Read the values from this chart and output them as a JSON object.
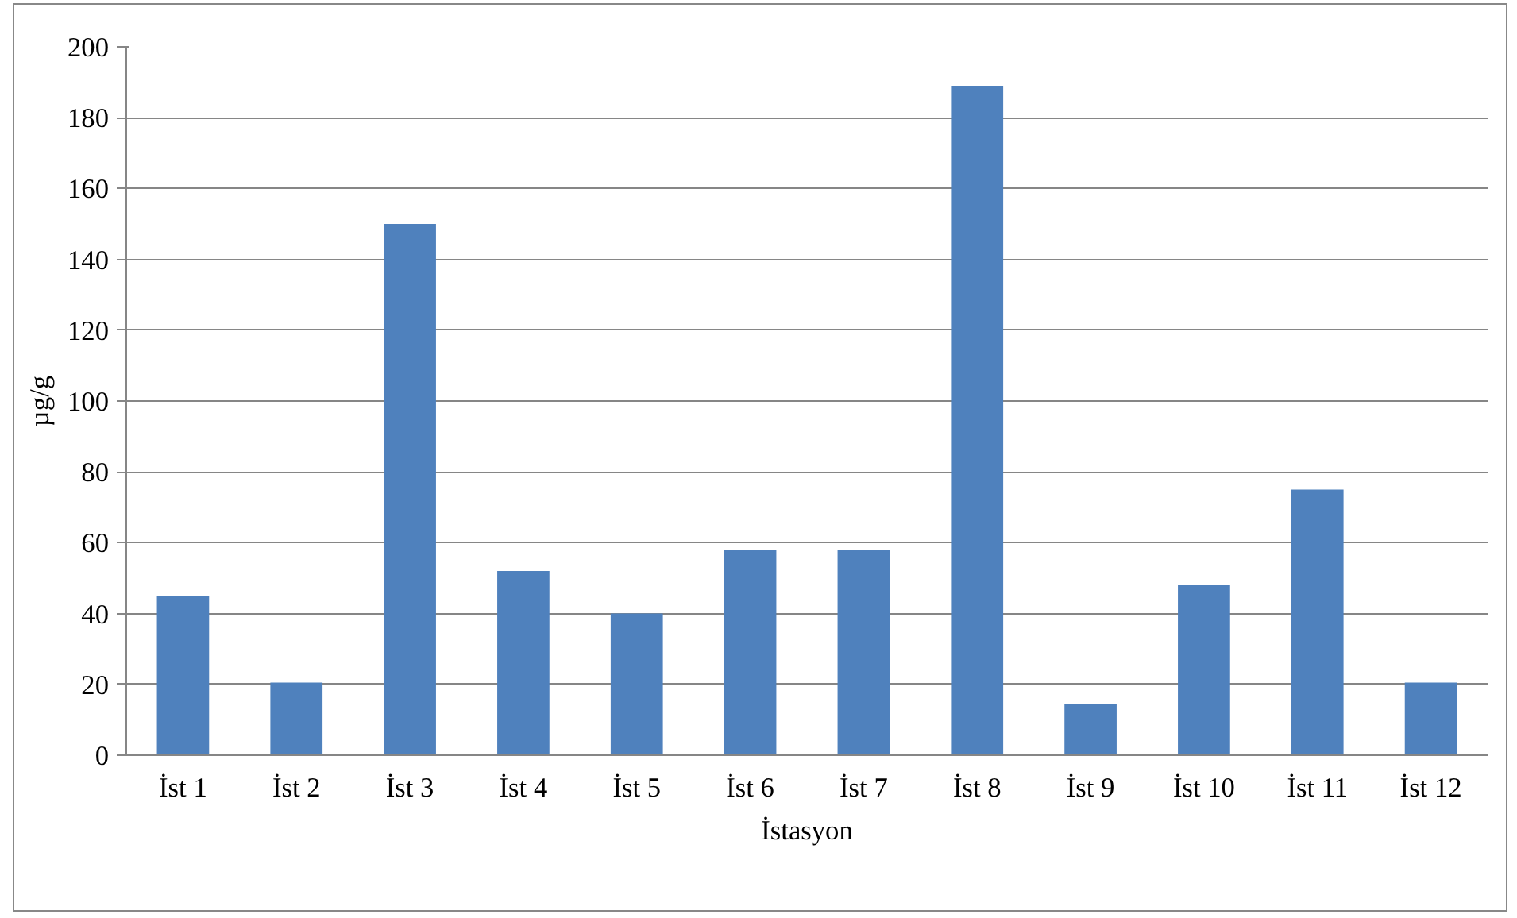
{
  "chart_data": {
    "type": "bar",
    "xlabel": "İstasyon",
    "ylabel": "µg/g",
    "categories": [
      "İst 1",
      "İst 2",
      "İst 3",
      "İst 4",
      "İst 5",
      "İst 6",
      "İst 7",
      "İst 8",
      "İst 9",
      "İst 10",
      "İst 11",
      "İst 12"
    ],
    "values": [
      45,
      20.5,
      150,
      52,
      40,
      58,
      58,
      189,
      14.5,
      48,
      75,
      20.5
    ],
    "color": "#4f81bd",
    "ylim": [
      0,
      200
    ],
    "yticks": [
      0,
      20,
      40,
      60,
      80,
      100,
      120,
      140,
      160,
      180,
      200
    ],
    "grid": "y"
  }
}
